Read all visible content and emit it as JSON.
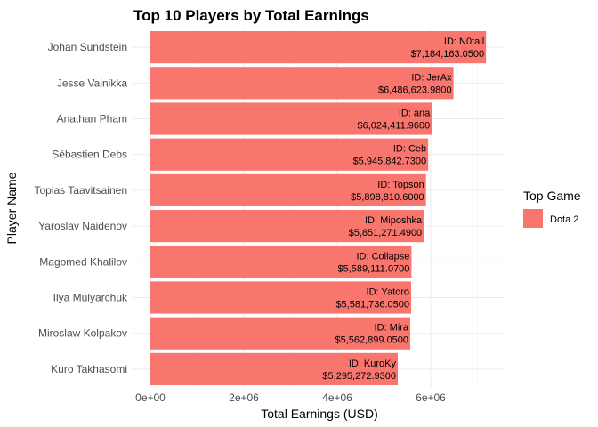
{
  "chart_data": {
    "type": "bar",
    "orientation": "horizontal",
    "title": "Top 10 Players by Total Earnings",
    "xlabel": "Total Earnings (USD)",
    "ylabel": "Player Name",
    "xlim": [
      0,
      7400000
    ],
    "x_ticks": [
      0,
      2000000,
      4000000,
      6000000
    ],
    "x_tick_labels": [
      "0e+00",
      "2e+06",
      "4e+06",
      "6e+06"
    ],
    "grid": true,
    "legend": {
      "title": "Top Game",
      "placement": "right",
      "entries": [
        {
          "name": "Dota 2",
          "color": "#F8766D"
        }
      ]
    },
    "bar_color": "#F8766D",
    "categories": [
      "Johan Sundstein",
      "Jesse Vainikka",
      "Anathan Pham",
      "Sébastien Debs",
      "Topias Taavitsainen",
      "Yaroslav Naidenov",
      "Magomed Khalilov",
      "Ilya Mulyarchuk",
      "Miroslaw Kolpakov",
      "Kuro Takhasomi"
    ],
    "values": [
      7184163.05,
      6486623.98,
      6024411.96,
      5945842.73,
      5898810.6,
      5851271.49,
      5589111.07,
      5581736.05,
      5562899.05,
      5295272.93
    ],
    "bar_labels": [
      {
        "id": "ID: N0tail",
        "amount": "$7,184,163.0500"
      },
      {
        "id": "ID: JerAx",
        "amount": "$6,486,623.9800"
      },
      {
        "id": "ID: ana",
        "amount": "$6,024,411.9600"
      },
      {
        "id": "ID: Ceb",
        "amount": "$5,945,842.7300"
      },
      {
        "id": "ID: Topson",
        "amount": "$5,898,810.6000"
      },
      {
        "id": "ID: Miposhka",
        "amount": "$5,851,271.4900"
      },
      {
        "id": "ID: Collapse",
        "amount": "$5,589,111.0700"
      },
      {
        "id": "ID: Yatoro",
        "amount": "$5,581,736.0500"
      },
      {
        "id": "ID: Mira",
        "amount": "$5,562,899.0500"
      },
      {
        "id": "ID: KuroKy",
        "amount": "$5,295,272.9300"
      }
    ]
  }
}
